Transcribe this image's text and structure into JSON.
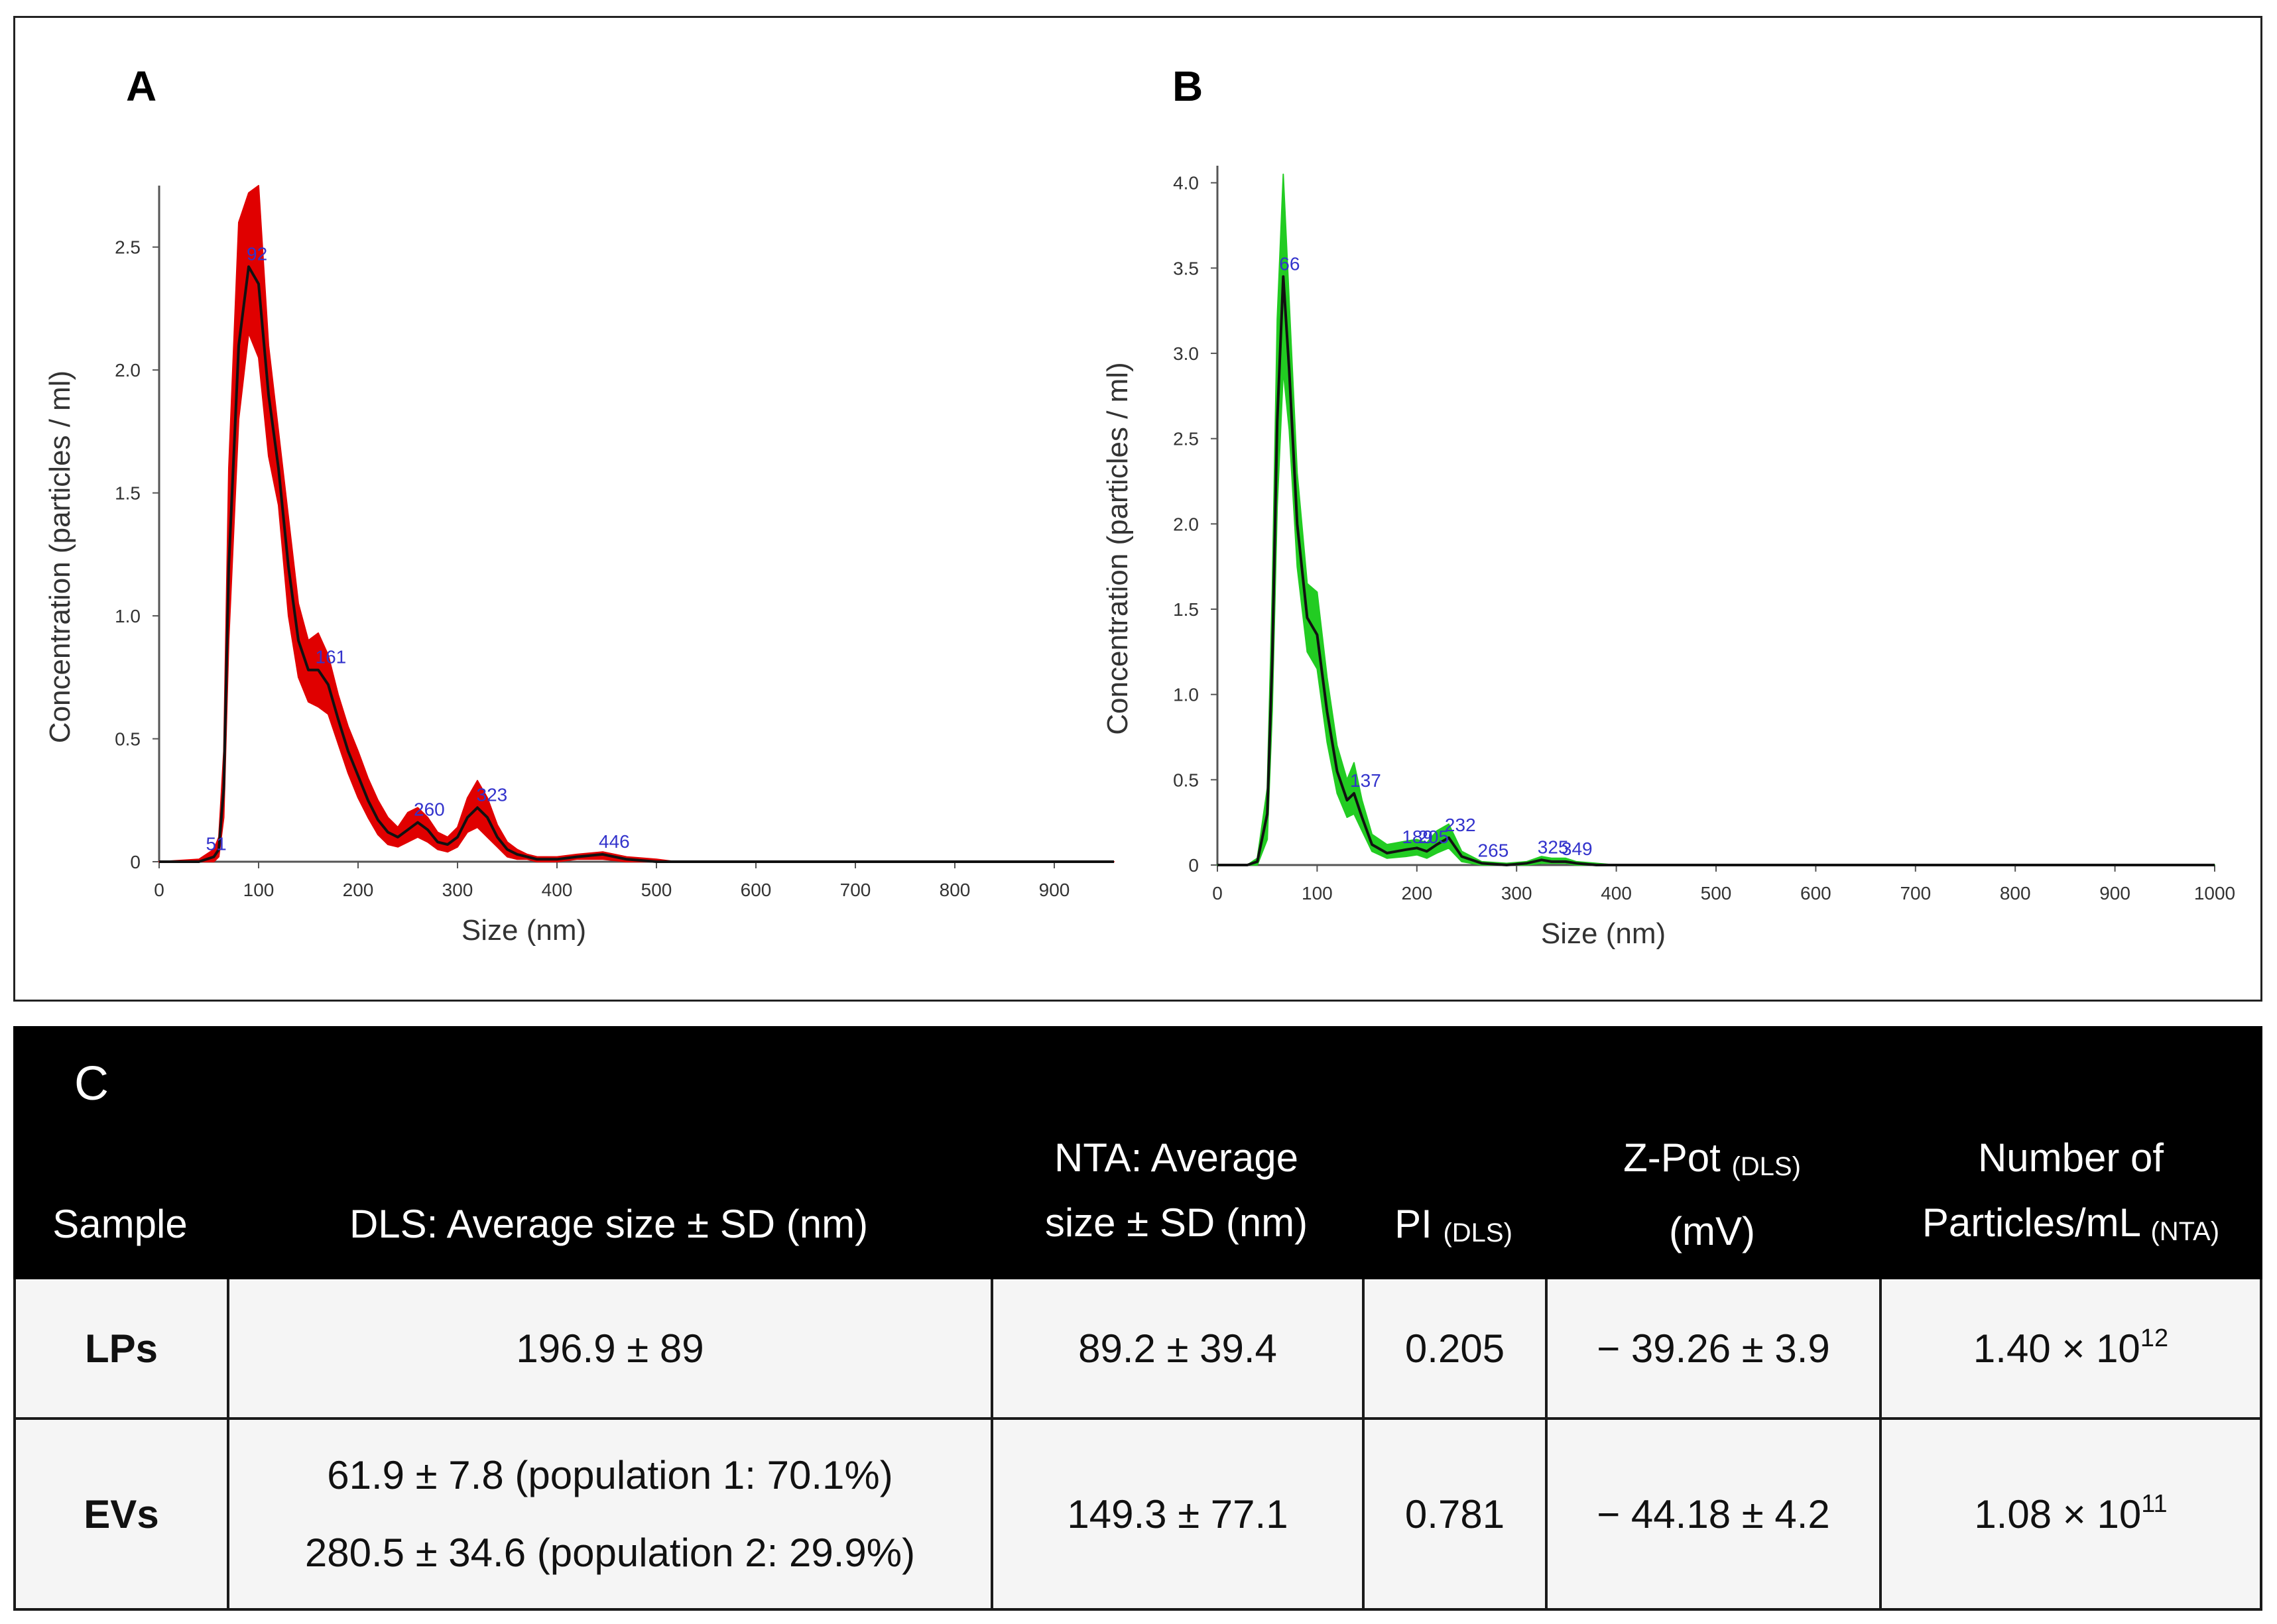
{
  "chart_data": [
    {
      "type": "line",
      "panel": "A",
      "series_color": "#e00000",
      "xlabel": "Size (nm)",
      "ylabel": "Concentration (particles / ml)",
      "xlim": [
        0,
        960
      ],
      "ylim": [
        0,
        2.75
      ],
      "xticks": [
        0,
        100,
        200,
        300,
        400,
        500,
        600,
        700,
        800,
        900
      ],
      "yticks": [
        0,
        0.5,
        1.0,
        1.5,
        2.0,
        2.5
      ],
      "ytick_labels": [
        "0",
        "0.5",
        "1.0",
        "1.5",
        "2.0",
        "2.5"
      ],
      "x": [
        0,
        40,
        55,
        60,
        65,
        70,
        80,
        90,
        100,
        110,
        120,
        130,
        140,
        150,
        160,
        170,
        180,
        190,
        200,
        210,
        220,
        230,
        240,
        250,
        260,
        270,
        280,
        290,
        300,
        310,
        320,
        330,
        340,
        350,
        360,
        370,
        380,
        400,
        420,
        446,
        470,
        500,
        520,
        960
      ],
      "mean": [
        0,
        0,
        0.02,
        0.05,
        0.3,
        1.2,
        2.1,
        2.42,
        2.35,
        1.9,
        1.6,
        1.2,
        0.9,
        0.78,
        0.78,
        0.72,
        0.58,
        0.45,
        0.35,
        0.25,
        0.17,
        0.12,
        0.1,
        0.13,
        0.16,
        0.13,
        0.08,
        0.07,
        0.1,
        0.18,
        0.22,
        0.18,
        0.1,
        0.05,
        0.03,
        0.02,
        0.01,
        0.01,
        0.02,
        0.03,
        0.01,
        0,
        0,
        0
      ],
      "upper": [
        0,
        0.01,
        0.05,
        0.1,
        0.45,
        1.6,
        2.6,
        2.72,
        2.75,
        2.1,
        1.75,
        1.4,
        1.05,
        0.9,
        0.93,
        0.84,
        0.68,
        0.55,
        0.45,
        0.34,
        0.25,
        0.18,
        0.14,
        0.2,
        0.22,
        0.18,
        0.12,
        0.1,
        0.14,
        0.26,
        0.33,
        0.26,
        0.15,
        0.08,
        0.05,
        0.03,
        0.02,
        0.02,
        0.03,
        0.04,
        0.02,
        0.01,
        0,
        0
      ],
      "lower": [
        0,
        0,
        0,
        0.02,
        0.18,
        0.9,
        1.8,
        2.15,
        2.05,
        1.65,
        1.45,
        1.0,
        0.75,
        0.65,
        0.63,
        0.6,
        0.48,
        0.36,
        0.26,
        0.18,
        0.11,
        0.07,
        0.06,
        0.08,
        0.1,
        0.08,
        0.05,
        0.04,
        0.06,
        0.12,
        0.14,
        0.1,
        0.06,
        0.02,
        0.01,
        0.01,
        0,
        0,
        0.01,
        0.01,
        0,
        0,
        0,
        0
      ],
      "peak_labels": [
        {
          "x": 51,
          "y": 0.02,
          "text": "51"
        },
        {
          "x": 92,
          "y": 2.42,
          "text": "92"
        },
        {
          "x": 161,
          "y": 0.78,
          "text": "161"
        },
        {
          "x": 260,
          "y": 0.16,
          "text": "260"
        },
        {
          "x": 323,
          "y": 0.22,
          "text": "323"
        },
        {
          "x": 446,
          "y": 0.03,
          "text": "446"
        }
      ]
    },
    {
      "type": "line",
      "panel": "B",
      "series_color": "#22cc22",
      "xlabel": "Size (nm)",
      "ylabel": "Concentration (particles / ml)",
      "xlim": [
        0,
        1000
      ],
      "ylim": [
        0,
        4.1
      ],
      "xticks": [
        0,
        100,
        200,
        300,
        400,
        500,
        600,
        700,
        800,
        900,
        1000
      ],
      "yticks": [
        0,
        0.5,
        1.0,
        1.5,
        2.0,
        2.5,
        3.0,
        3.5,
        4.0
      ],
      "ytick_labels": [
        "0",
        "0.5",
        "1.0",
        "1.5",
        "2.0",
        "2.5",
        "3.0",
        "3.5",
        "4.0"
      ],
      "x": [
        0,
        30,
        40,
        50,
        55,
        60,
        66,
        72,
        80,
        90,
        100,
        110,
        120,
        130,
        137,
        145,
        155,
        170,
        189,
        200,
        210,
        220,
        232,
        245,
        265,
        290,
        310,
        325,
        335,
        349,
        360,
        380,
        400,
        1000
      ],
      "mean": [
        0,
        0,
        0.02,
        0.3,
        1.2,
        2.6,
        3.45,
        2.9,
        2.0,
        1.45,
        1.35,
        0.9,
        0.55,
        0.38,
        0.42,
        0.28,
        0.12,
        0.07,
        0.09,
        0.1,
        0.08,
        0.12,
        0.16,
        0.05,
        0.01,
        0.0,
        0.01,
        0.03,
        0.02,
        0.02,
        0.01,
        0,
        0,
        0
      ],
      "upper": [
        0,
        0,
        0.04,
        0.45,
        1.6,
        3.2,
        4.05,
        3.3,
        2.3,
        1.65,
        1.6,
        1.1,
        0.7,
        0.5,
        0.6,
        0.38,
        0.18,
        0.12,
        0.14,
        0.15,
        0.13,
        0.2,
        0.24,
        0.08,
        0.02,
        0.01,
        0.02,
        0.05,
        0.04,
        0.04,
        0.02,
        0.01,
        0,
        0
      ],
      "lower": [
        0,
        0,
        0,
        0.15,
        0.9,
        2.1,
        2.9,
        2.55,
        1.75,
        1.25,
        1.15,
        0.72,
        0.42,
        0.28,
        0.3,
        0.2,
        0.08,
        0.04,
        0.05,
        0.06,
        0.04,
        0.07,
        0.1,
        0.02,
        0,
        0,
        0,
        0.01,
        0.01,
        0.01,
        0,
        0,
        0,
        0
      ],
      "peak_labels": [
        {
          "x": 66,
          "y": 3.45,
          "text": "66"
        },
        {
          "x": 137,
          "y": 0.42,
          "text": "137"
        },
        {
          "x": 189,
          "y": 0.09,
          "text": "189"
        },
        {
          "x": 205,
          "y": 0.09,
          "text": "205"
        },
        {
          "x": 232,
          "y": 0.16,
          "text": "232"
        },
        {
          "x": 265,
          "y": 0.01,
          "text": "265"
        },
        {
          "x": 325,
          "y": 0.03,
          "text": "325"
        },
        {
          "x": 349,
          "y": 0.02,
          "text": "349"
        }
      ]
    }
  ],
  "table": {
    "panel_label": "C",
    "headers": {
      "sample": "Sample",
      "dls_size": "DLS: Average size ± SD (nm)",
      "nta_size_line1": "NTA: Average",
      "nta_size_line2": "size ± SD (nm)",
      "pi": "PI",
      "pi_sub": "(DLS)",
      "zpot_line1": "Z-Pot",
      "zpot_sub": "(DLS)",
      "zpot_line2": "(mV)",
      "particles_line1": "Number of",
      "particles_line2": "Particles/mL",
      "particles_sub": "(NTA)"
    },
    "rows": [
      {
        "sample": "LPs",
        "dls_line1": "196.9 ± 89",
        "dls_line2": "",
        "nta": "89.2 ± 39.4",
        "pi": "0.205",
        "zpot": "− 39.26 ± 3.9",
        "particles_base": "1.40 × 10",
        "particles_exp": "12"
      },
      {
        "sample": "EVs",
        "dls_line1": "61.9 ± 7.8 (population 1: 70.1%)",
        "dls_line2": "280.5 ± 34.6 (population 2: 29.9%)",
        "nta": "149.3 ± 77.1",
        "pi": "0.781",
        "zpot": "− 44.18 ± 4.2",
        "particles_base": "1.08 × 10",
        "particles_exp": "11"
      }
    ]
  }
}
